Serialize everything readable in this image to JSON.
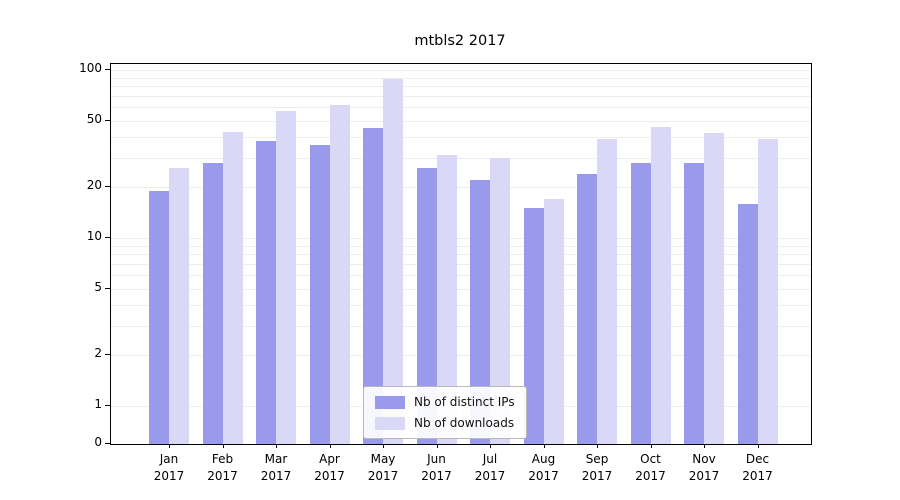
{
  "chart_data": {
    "type": "bar",
    "title": "mtbls2 2017",
    "year": "2017",
    "categories": [
      "Jan",
      "Feb",
      "Mar",
      "Apr",
      "May",
      "Jun",
      "Jul",
      "Aug",
      "Sep",
      "Oct",
      "Nov",
      "Dec"
    ],
    "series": [
      {
        "name": "Nb of distinct IPs",
        "color": "#9a9aec",
        "values": [
          19,
          28,
          38,
          36,
          45,
          26,
          22,
          15,
          24,
          28,
          28,
          16
        ]
      },
      {
        "name": "Nb of downloads",
        "color": "#d9d9f7",
        "values": [
          26,
          43,
          57,
          62,
          88,
          31,
          30,
          17,
          39,
          46,
          42,
          39
        ]
      }
    ],
    "y_ticks": [
      0,
      1,
      2,
      5,
      10,
      20,
      50,
      100
    ],
    "y_scale": "symlog",
    "ylim": [
      0,
      100
    ],
    "grid": true,
    "legend_position": "lower center",
    "xlabel": "",
    "ylabel": ""
  }
}
